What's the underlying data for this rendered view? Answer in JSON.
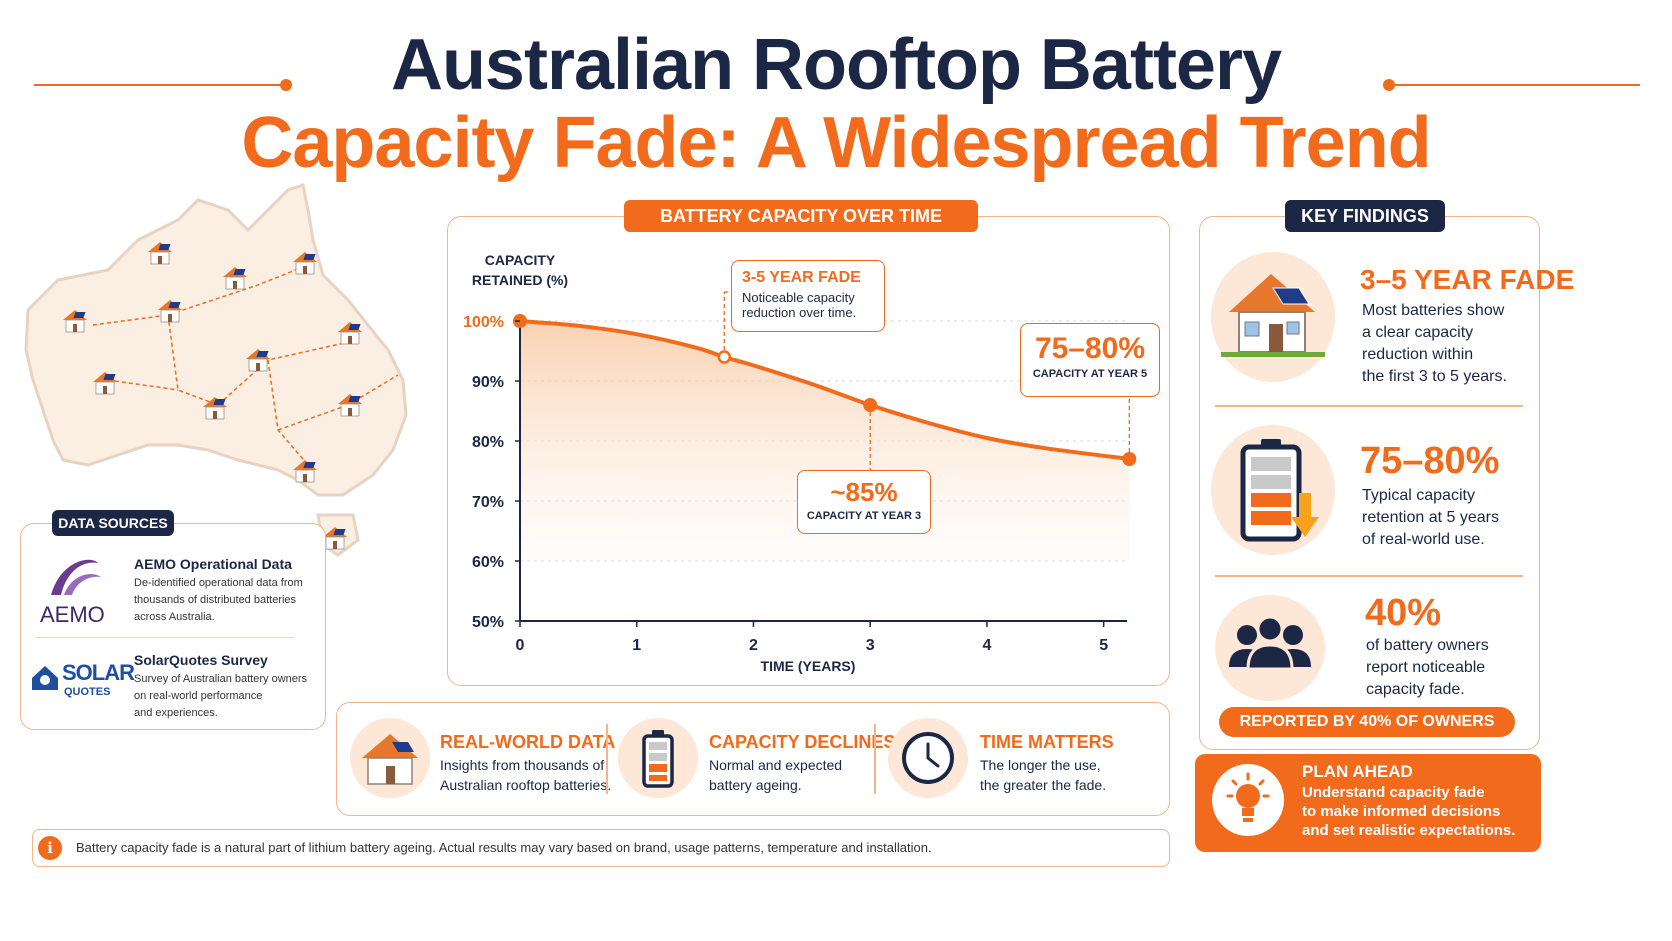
{
  "title": {
    "line1": "Australian Rooftop Battery",
    "line2": "Capacity Fade: A Widespread Trend"
  },
  "colors": {
    "navy": "#1c2746",
    "orange": "#f26a1b",
    "peach": "#fde7d6",
    "border": "#f5b48a"
  },
  "data_sources": {
    "header": "DATA SOURCES",
    "items": [
      {
        "logo_text": "AEMO",
        "title": "AEMO Operational Data",
        "lines": [
          "De-identified operational data from",
          "thousands of distributed batteries",
          "across Australia."
        ]
      },
      {
        "logo_text_top": "SOLAR",
        "logo_text_bottom": "QUOTES",
        "title": "SolarQuotes Survey",
        "lines": [
          "Survey of Australian battery owners",
          "on real-world performance",
          "and experiences."
        ]
      }
    ]
  },
  "chart_panel": {
    "header": "BATTERY CAPACITY OVER TIME",
    "callout_fade": {
      "title": "3-5 YEAR FADE",
      "lines": [
        "Noticeable capacity",
        "reduction over time."
      ]
    },
    "callout_year3": {
      "value": "~85%",
      "label": "CAPACITY AT YEAR 3"
    },
    "callout_year5": {
      "value": "75–80%",
      "label": "CAPACITY AT YEAR 5"
    }
  },
  "chart_data": {
    "type": "area",
    "title": "BATTERY CAPACITY OVER TIME",
    "ylabel_line1": "CAPACITY",
    "ylabel_line2": "RETAINED (%)",
    "xlabel": "TIME (YEARS)",
    "x_ticks": [
      "0",
      "1",
      "2",
      "3",
      "4",
      "5"
    ],
    "y_ticks": [
      "50%",
      "60%",
      "70%",
      "80%",
      "90%",
      "100%"
    ],
    "xlim": [
      0,
      5.2
    ],
    "ylim": [
      50,
      100
    ],
    "grid": true,
    "series": [
      {
        "x": [
          0,
          0.5,
          1,
          1.5,
          1.75,
          2,
          2.5,
          3,
          3.5,
          4,
          4.5,
          5.22
        ],
        "y": [
          100,
          99.2,
          97.8,
          95.6,
          94,
          92.6,
          89.5,
          86,
          83,
          80.5,
          78.8,
          77
        ]
      }
    ],
    "markers": [
      {
        "x": 0,
        "y": 100,
        "style": "filled"
      },
      {
        "x": 1.75,
        "y": 94,
        "style": "hollow"
      },
      {
        "x": 3,
        "y": 86,
        "style": "filled"
      },
      {
        "x": 5.22,
        "y": 77,
        "style": "filled"
      }
    ]
  },
  "key_findings": {
    "header": "KEY FINDINGS",
    "items": [
      {
        "icon": "house-solar-icon",
        "big": "3–5 YEAR FADE",
        "lines": [
          "Most batteries show",
          "a clear capacity",
          "reduction within",
          "the first 3 to 5 years."
        ]
      },
      {
        "icon": "battery-down-icon",
        "big": "75–80%",
        "lines": [
          "Typical capacity",
          "retention at 5 years",
          "of real-world use."
        ]
      },
      {
        "icon": "people-icon",
        "big": "40%",
        "lines": [
          "of battery owners",
          "report noticeable",
          "capacity fade."
        ]
      }
    ],
    "badge": "REPORTED BY 40% OF OWNERS"
  },
  "plan_ahead": {
    "title": "PLAN AHEAD",
    "lines": [
      "Understand capacity fade",
      "to make informed decisions",
      "and set realistic expectations."
    ]
  },
  "strip": [
    {
      "icon": "house-solar-icon",
      "title": "REAL-WORLD DATA",
      "lines": [
        "Insights from thousands of",
        "Australian rooftop batteries."
      ]
    },
    {
      "icon": "battery-icon",
      "title": "CAPACITY DECLINES",
      "lines": [
        "Normal and expected",
        "battery ageing."
      ]
    },
    {
      "icon": "clock-icon",
      "title": "TIME MATTERS",
      "lines": [
        "The longer the use,",
        "the greater the fade."
      ]
    }
  ],
  "footnote": {
    "icon": "info-icon",
    "text": "Battery capacity fade is a natural part of lithium battery ageing. Actual results may vary based on brand, usage patterns, temperature and installation."
  }
}
